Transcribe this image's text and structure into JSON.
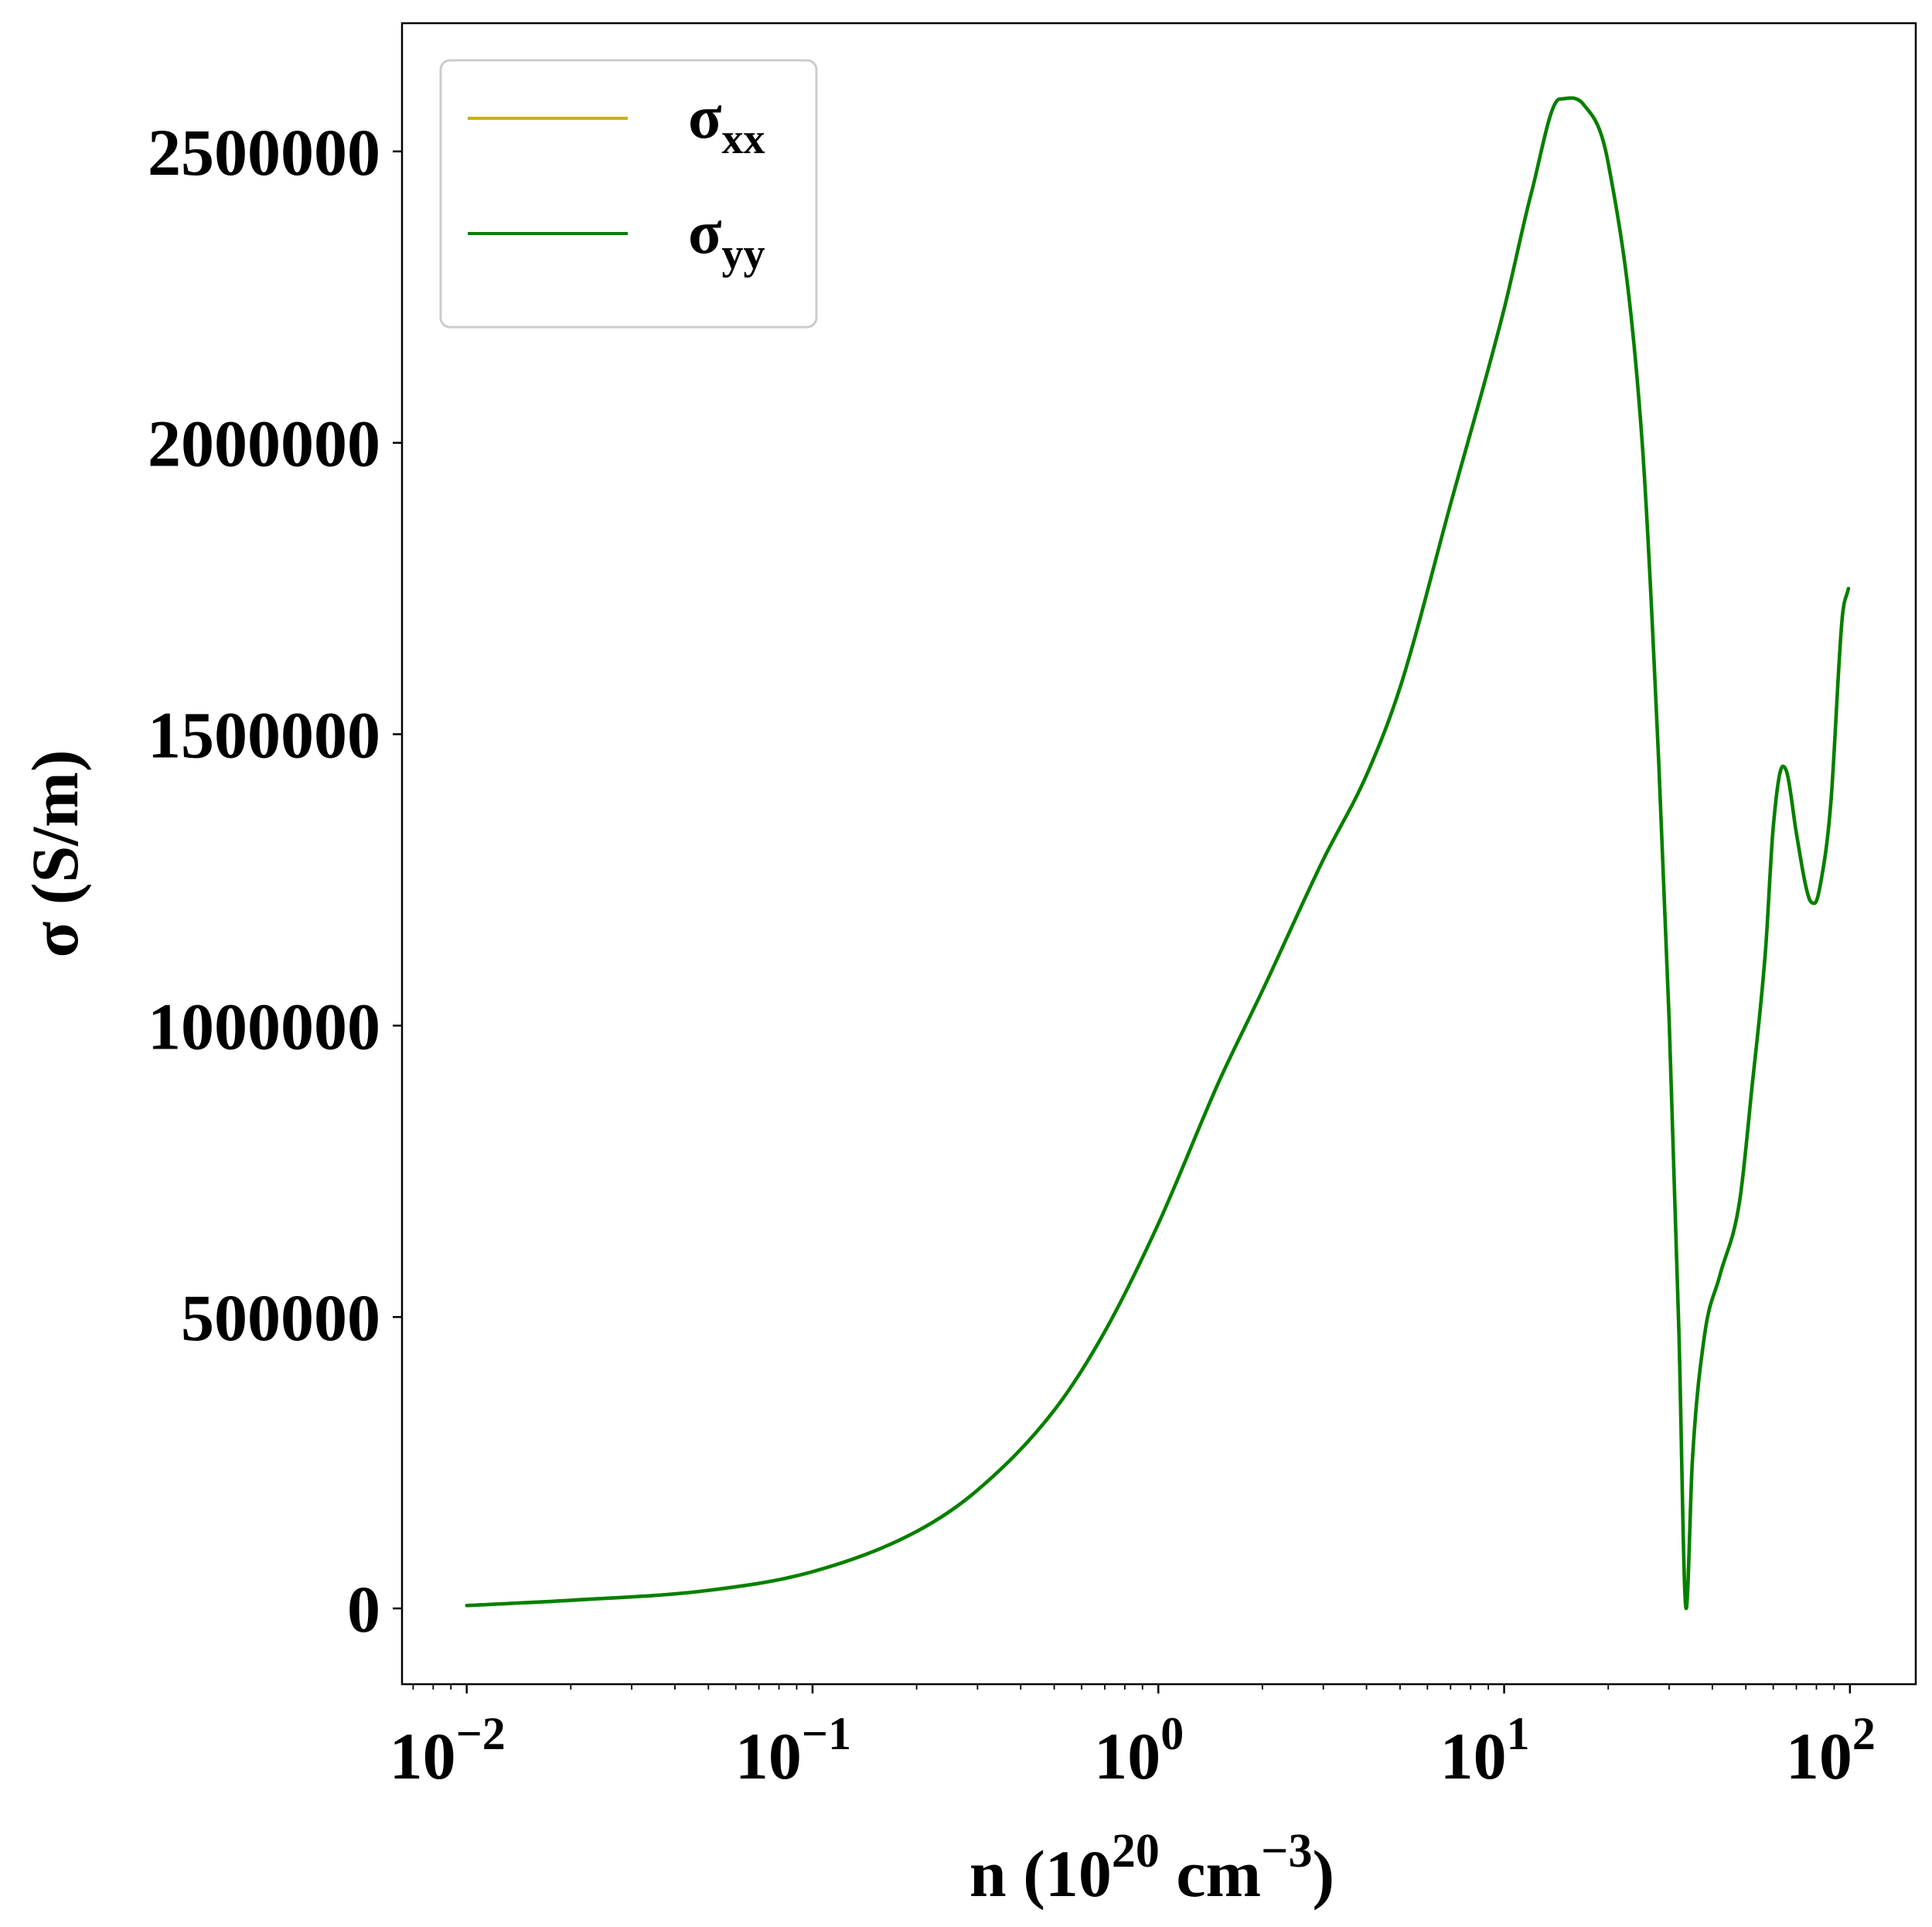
{
  "chart_data": {
    "type": "line",
    "title": "",
    "xlabel": {
      "base": "n (10",
      "sup1": "20",
      "mid": " cm",
      "sup2": "−3",
      "end": ")"
    },
    "ylabel": "σ (S/m)",
    "xscale": "log",
    "xlim": [
      0.0065,
      155
    ],
    "ylim": [
      -130000,
      2720000
    ],
    "x_ticks": [
      {
        "value": 0.01,
        "base": "10",
        "exp": "−2"
      },
      {
        "value": 0.1,
        "base": "10",
        "exp": "−1"
      },
      {
        "value": 1,
        "base": "10",
        "exp": "0"
      },
      {
        "value": 10,
        "base": "10",
        "exp": "1"
      },
      {
        "value": 100,
        "base": "10",
        "exp": "2"
      }
    ],
    "y_ticks": [
      {
        "value": 0,
        "label": "0"
      },
      {
        "value": 500000,
        "label": "500000"
      },
      {
        "value": 1000000,
        "label": "1000000"
      },
      {
        "value": 1500000,
        "label": "1500000"
      },
      {
        "value": 2000000,
        "label": "2000000"
      },
      {
        "value": 2500000,
        "label": "2500000"
      }
    ],
    "grid": false,
    "legend_position": "top-left",
    "series": [
      {
        "name": "σ",
        "subscript": "xx",
        "color": "#c8b400",
        "x": [
          0.01,
          0.02,
          0.05,
          0.1,
          0.2,
          0.3,
          0.5,
          0.7,
          1.0,
          1.5,
          2.0,
          3.0,
          4.0,
          5.0,
          7.0,
          10.0,
          12.0,
          14.5,
          17.0,
          20.0,
          25.0,
          28.0,
          30.0,
          32.0,
          33.6,
          35.0,
          38.0,
          42.0,
          48.0,
          52.0,
          57.0,
          60.0,
          64.0,
          66.0,
          70.0,
          76.0,
          79.0,
          82.0,
          88.0,
          95.0,
          99.0
        ],
        "y": [
          5000,
          14000,
          31000,
          63000,
          132000,
          203000,
          340000,
          475000,
          660000,
          905000,
          1060000,
          1285000,
          1430000,
          1580000,
          1895000,
          2230000,
          2430000,
          2590000,
          2580000,
          2480000,
          2010000,
          1450000,
          1010000,
          480000,
          0,
          250000,
          470000,
          570000,
          700000,
          890000,
          1130000,
          1340000,
          1445000,
          1430000,
          1330000,
          1220000,
          1210000,
          1240000,
          1380000,
          1700000,
          1750000
        ]
      },
      {
        "name": "σ",
        "subscript": "yy",
        "color": "#008000",
        "x": [
          0.01,
          0.02,
          0.05,
          0.1,
          0.2,
          0.3,
          0.5,
          0.7,
          1.0,
          1.5,
          2.0,
          3.0,
          4.0,
          5.0,
          7.0,
          10.0,
          12.0,
          14.5,
          17.0,
          20.0,
          25.0,
          28.0,
          30.0,
          32.0,
          33.6,
          35.0,
          38.0,
          42.0,
          48.0,
          52.0,
          57.0,
          60.0,
          64.0,
          66.0,
          70.0,
          76.0,
          79.0,
          82.0,
          88.0,
          95.0,
          99.0
        ],
        "y": [
          5000,
          14000,
          31000,
          63000,
          132000,
          203000,
          340000,
          475000,
          660000,
          905000,
          1060000,
          1285000,
          1430000,
          1580000,
          1895000,
          2230000,
          2430000,
          2590000,
          2580000,
          2480000,
          2010000,
          1450000,
          1010000,
          480000,
          0,
          250000,
          470000,
          570000,
          700000,
          890000,
          1130000,
          1340000,
          1445000,
          1430000,
          1330000,
          1220000,
          1210000,
          1240000,
          1380000,
          1700000,
          1750000
        ]
      }
    ]
  }
}
